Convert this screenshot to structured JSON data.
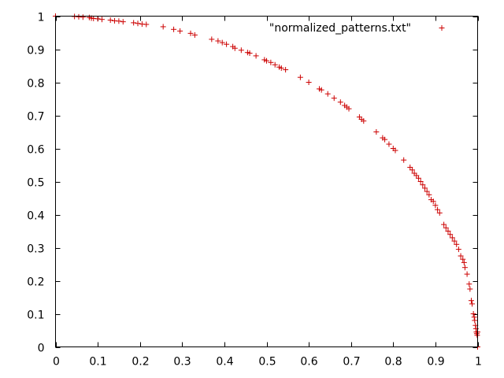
{
  "chart_data": {
    "type": "scatter",
    "title": "",
    "xlabel": "",
    "ylabel": "",
    "xlim": [
      0,
      1
    ],
    "ylim": [
      0,
      1
    ],
    "grid": false,
    "legend_position": "top-right",
    "x_ticks": [
      "0",
      "0.1",
      "0.2",
      "0.3",
      "0.4",
      "0.5",
      "0.6",
      "0.7",
      "0.8",
      "0.9",
      "1"
    ],
    "y_ticks": [
      "0",
      "0.1",
      "0.2",
      "0.3",
      "0.4",
      "0.5",
      "0.6",
      "0.7",
      "0.8",
      "0.9",
      "1"
    ],
    "marker": "plus",
    "series": [
      {
        "name": "\"normalized_patterns.txt\"",
        "color": "#cc0000",
        "points": [
          [
            0.0,
            1.0
          ],
          [
            0.045,
            0.999
          ],
          [
            0.055,
            0.998
          ],
          [
            0.065,
            0.997
          ],
          [
            0.08,
            0.996
          ],
          [
            0.085,
            0.994
          ],
          [
            0.09,
            0.993
          ],
          [
            0.1,
            0.992
          ],
          [
            0.11,
            0.99
          ],
          [
            0.13,
            0.988
          ],
          [
            0.14,
            0.986
          ],
          [
            0.15,
            0.985
          ],
          [
            0.16,
            0.983
          ],
          [
            0.185,
            0.98
          ],
          [
            0.195,
            0.978
          ],
          [
            0.205,
            0.976
          ],
          [
            0.215,
            0.975
          ],
          [
            0.255,
            0.968
          ],
          [
            0.28,
            0.96
          ],
          [
            0.295,
            0.955
          ],
          [
            0.32,
            0.948
          ],
          [
            0.33,
            0.943
          ],
          [
            0.37,
            0.93
          ],
          [
            0.385,
            0.925
          ],
          [
            0.395,
            0.92
          ],
          [
            0.405,
            0.915
          ],
          [
            0.42,
            0.908
          ],
          [
            0.425,
            0.903
          ],
          [
            0.44,
            0.897
          ],
          [
            0.455,
            0.89
          ],
          [
            0.46,
            0.888
          ],
          [
            0.475,
            0.88
          ],
          [
            0.495,
            0.868
          ],
          [
            0.5,
            0.865
          ],
          [
            0.51,
            0.86
          ],
          [
            0.52,
            0.853
          ],
          [
            0.53,
            0.846
          ],
          [
            0.535,
            0.843
          ],
          [
            0.545,
            0.838
          ],
          [
            0.58,
            0.815
          ],
          [
            0.6,
            0.8
          ],
          [
            0.625,
            0.78
          ],
          [
            0.63,
            0.777
          ],
          [
            0.645,
            0.765
          ],
          [
            0.66,
            0.752
          ],
          [
            0.675,
            0.74
          ],
          [
            0.685,
            0.73
          ],
          [
            0.69,
            0.725
          ],
          [
            0.695,
            0.72
          ],
          [
            0.72,
            0.695
          ],
          [
            0.725,
            0.688
          ],
          [
            0.73,
            0.683
          ],
          [
            0.76,
            0.65
          ],
          [
            0.775,
            0.632
          ],
          [
            0.78,
            0.627
          ],
          [
            0.79,
            0.613
          ],
          [
            0.8,
            0.6
          ],
          [
            0.805,
            0.594
          ],
          [
            0.825,
            0.565
          ],
          [
            0.84,
            0.543
          ],
          [
            0.845,
            0.535
          ],
          [
            0.85,
            0.525
          ],
          [
            0.855,
            0.518
          ],
          [
            0.86,
            0.51
          ],
          [
            0.865,
            0.5
          ],
          [
            0.87,
            0.49
          ],
          [
            0.875,
            0.48
          ],
          [
            0.88,
            0.47
          ],
          [
            0.885,
            0.46
          ],
          [
            0.89,
            0.445
          ],
          [
            0.895,
            0.44
          ],
          [
            0.9,
            0.428
          ],
          [
            0.905,
            0.415
          ],
          [
            0.91,
            0.405
          ],
          [
            0.92,
            0.37
          ],
          [
            0.925,
            0.36
          ],
          [
            0.93,
            0.35
          ],
          [
            0.935,
            0.34
          ],
          [
            0.94,
            0.33
          ],
          [
            0.945,
            0.32
          ],
          [
            0.95,
            0.31
          ],
          [
            0.955,
            0.295
          ],
          [
            0.96,
            0.275
          ],
          [
            0.965,
            0.265
          ],
          [
            0.968,
            0.255
          ],
          [
            0.97,
            0.24
          ],
          [
            0.975,
            0.22
          ],
          [
            0.98,
            0.19
          ],
          [
            0.982,
            0.175
          ],
          [
            0.985,
            0.14
          ],
          [
            0.987,
            0.13
          ],
          [
            0.99,
            0.1
          ],
          [
            0.992,
            0.09
          ],
          [
            0.993,
            0.08
          ],
          [
            0.995,
            0.065
          ],
          [
            0.996,
            0.055
          ],
          [
            0.997,
            0.045
          ],
          [
            0.998,
            0.04
          ],
          [
            0.999,
            0.035
          ],
          [
            1.0,
            0.045
          ],
          [
            1.0,
            0.0
          ]
        ]
      }
    ]
  }
}
